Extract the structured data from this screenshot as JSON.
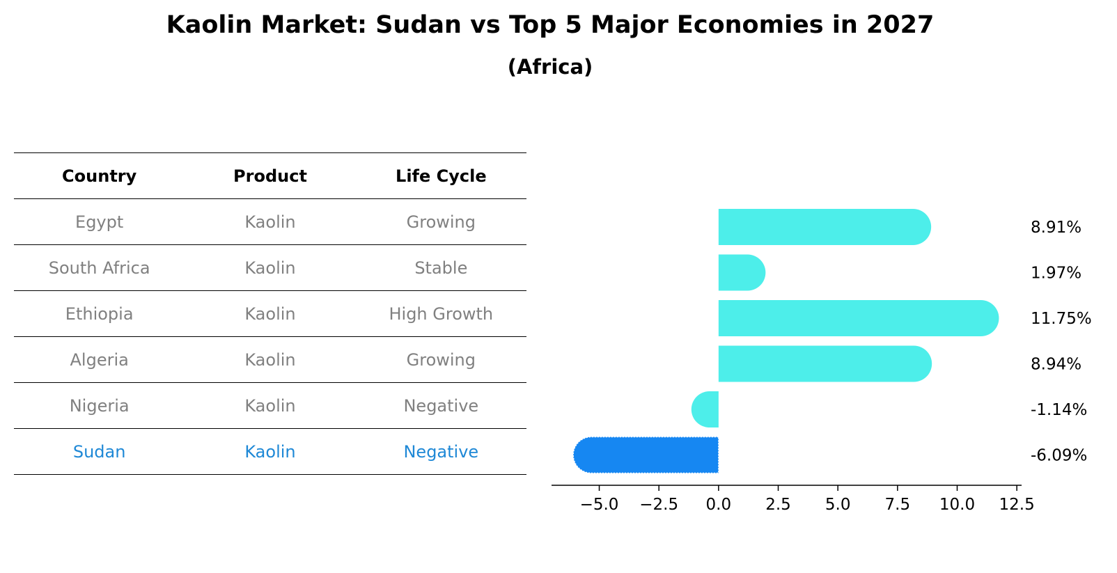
{
  "title": "Kaolin Market: Sudan vs Top 5 Major Economies in 2027",
  "subtitle": "(Africa)",
  "table": {
    "headers": [
      "Country",
      "Product",
      "Life Cycle"
    ],
    "rows": [
      [
        "Egypt",
        "Kaolin",
        "Growing"
      ],
      [
        "South Africa",
        "Kaolin",
        "Stable"
      ],
      [
        "Ethiopia",
        "Kaolin",
        "High Growth"
      ],
      [
        "Algeria",
        "Kaolin",
        "Growing"
      ],
      [
        "Nigeria",
        "Kaolin",
        "Negative"
      ],
      [
        "Sudan",
        "Kaolin",
        "Negative"
      ]
    ],
    "highlight_row": "Sudan"
  },
  "chart_data": {
    "type": "bar",
    "orientation": "horizontal",
    "categories": [
      "Egypt",
      "South Africa",
      "Ethiopia",
      "Algeria",
      "Nigeria",
      "Sudan"
    ],
    "values": [
      8.91,
      1.97,
      11.75,
      8.94,
      -1.14,
      -6.09
    ],
    "value_labels": [
      "8.91%",
      "1.97%",
      "11.75%",
      "8.94%",
      "-1.14%",
      "-6.09%"
    ],
    "xlim": [
      -7.0,
      12.7
    ],
    "xticks": [
      -5.0,
      -2.5,
      0.0,
      2.5,
      5.0,
      7.5,
      10.0,
      12.5
    ],
    "xtick_labels": [
      "−5.0",
      "−2.5",
      "0.0",
      "2.5",
      "5.0",
      "7.5",
      "10.0",
      "12.5"
    ],
    "grid": false,
    "colors": {
      "default": "#4deeea",
      "highlight": "#1687f2"
    },
    "highlight": "Sudan"
  }
}
